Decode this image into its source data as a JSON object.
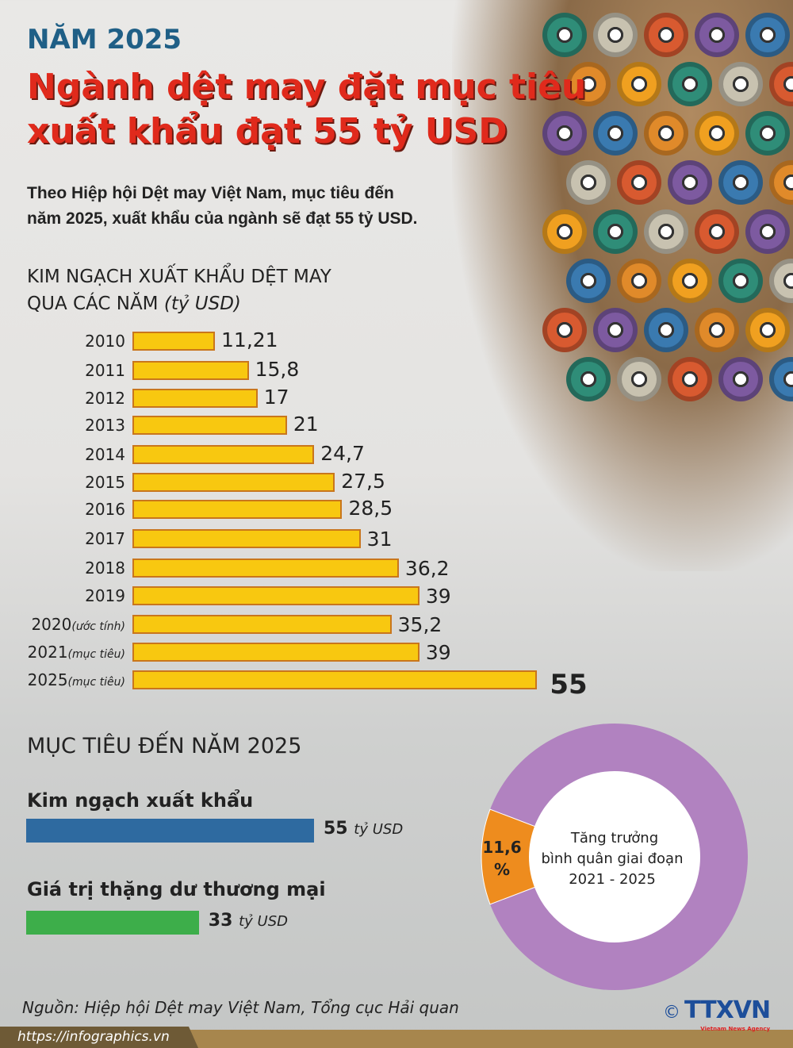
{
  "header": {
    "kicker": "NĂM 2025",
    "title_line1": "Ngành dệt may đặt mục tiêu",
    "title_line2": "xuất khẩu đạt 55 tỷ USD",
    "intro_line1": "Theo Hiệp hội Dệt may Việt Nam, mục tiêu đến",
    "intro_line2": "năm 2025, xuất khẩu của ngành sẽ đạt 55 tỷ USD."
  },
  "chart_data": [
    {
      "type": "bar",
      "orientation": "horizontal",
      "title_line1": "KIM NGẠCH XUẤT KHẨU DỆT MAY",
      "title_line2": "QUA CÁC NĂM ",
      "title_unit": "(tỷ USD)",
      "categories": [
        {
          "year": "2010",
          "note": ""
        },
        {
          "year": "2011",
          "note": ""
        },
        {
          "year": "2012",
          "note": ""
        },
        {
          "year": "2013",
          "note": ""
        },
        {
          "year": "2014",
          "note": ""
        },
        {
          "year": "2015",
          "note": ""
        },
        {
          "year": "2016",
          "note": ""
        },
        {
          "year": "2017",
          "note": ""
        },
        {
          "year": "2018",
          "note": ""
        },
        {
          "year": "2019",
          "note": ""
        },
        {
          "year": "2020",
          "note": "(ước tính)"
        },
        {
          "year": "2021",
          "note": "(mục tiêu)"
        },
        {
          "year": "2025",
          "note": "(mục tiêu)"
        }
      ],
      "values": [
        11.21,
        15.8,
        17,
        21,
        24.7,
        27.5,
        28.5,
        31,
        36.2,
        39,
        35.2,
        39,
        55
      ],
      "labels": [
        "11,21",
        "15,8",
        "17",
        "21",
        "24,7",
        "27,5",
        "28,5",
        "31",
        "36,2",
        "39",
        "35,2",
        "39",
        "55"
      ],
      "bar_color": "#f8c810",
      "border_color": "#c9761c"
    },
    {
      "type": "pie",
      "variant": "donut",
      "value_percent": 11.6,
      "value_label_line1": "11,6",
      "value_label_line2": "%",
      "center_line1": "Tăng trưởng",
      "center_line2": "bình quân giai đoạn",
      "center_line3": "2021 - 2025",
      "colors": {
        "value": "#ee8c1e",
        "rest": "#b182c0"
      }
    }
  ],
  "targets": {
    "title": "MỤC TIÊU ĐẾN NĂM 2025",
    "items": [
      {
        "label": "Kim ngạch xuất khẩu",
        "value": "55",
        "unit": "tỷ USD",
        "amount": 55,
        "color": "#2e6aa0"
      },
      {
        "label": "Giá trị thặng dư thương mại",
        "value": "33",
        "unit": "tỷ USD",
        "amount": 33,
        "color": "#3dae4a"
      }
    ]
  },
  "footer": {
    "source": "Nguồn: Hiệp hội Dệt may Việt Nam, Tổng cục Hải quan",
    "url": "https://infographics.vn",
    "logo": "TTXVN",
    "logo_sub": "Vietnam News Agency",
    "copyright": "©"
  }
}
